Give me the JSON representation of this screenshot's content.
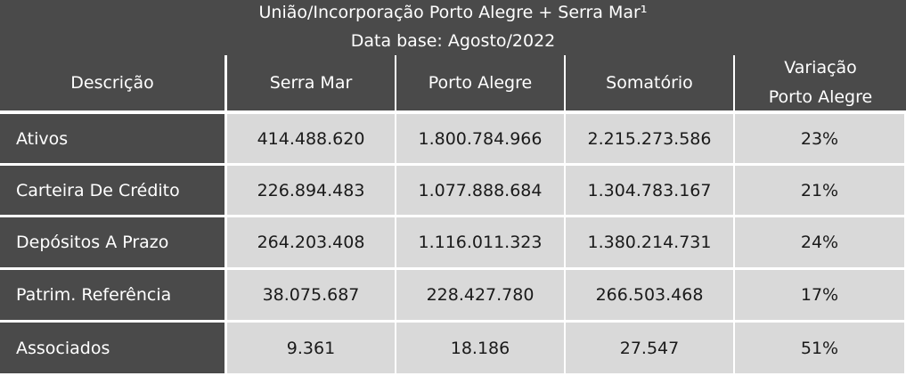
{
  "title": {
    "line1": "União/Incorporação Porto Alegre + Serra Mar¹",
    "line2": "Data base: Agosto/2022"
  },
  "headers": {
    "descricao": "Descrição",
    "serra_mar": "Serra Mar",
    "porto_alegre": "Porto Alegre",
    "somatorio": "Somatório",
    "variacao_l1": "Variação",
    "variacao_l2": "Porto Alegre"
  },
  "rows": [
    {
      "label": "Ativos",
      "serra_mar": "414.488.620",
      "porto_alegre": "1.800.784.966",
      "somatorio": "2.215.273.586",
      "variacao": "23%"
    },
    {
      "label": "Carteira De Crédito",
      "serra_mar": "226.894.483",
      "porto_alegre": "1.077.888.684",
      "somatorio": "1.304.783.167",
      "variacao": "21%"
    },
    {
      "label": "Depósitos A Prazo",
      "serra_mar": "264.203.408",
      "porto_alegre": "1.116.011.323",
      "somatorio": "1.380.214.731",
      "variacao": "24%"
    },
    {
      "label": "Patrim. Referência",
      "serra_mar": "38.075.687",
      "porto_alegre": "228.427.780",
      "somatorio": "266.503.468",
      "variacao": "17%"
    },
    {
      "label": "Associados",
      "serra_mar": "9.361",
      "porto_alegre": "18.186",
      "somatorio": "27.547",
      "variacao": "51%"
    }
  ],
  "colors": {
    "header_bg": "#4a4a4a",
    "header_text": "#ffffff",
    "value_bg": "#d9d9d9",
    "value_text": "#1a1a1a",
    "separator": "#ffffff"
  }
}
